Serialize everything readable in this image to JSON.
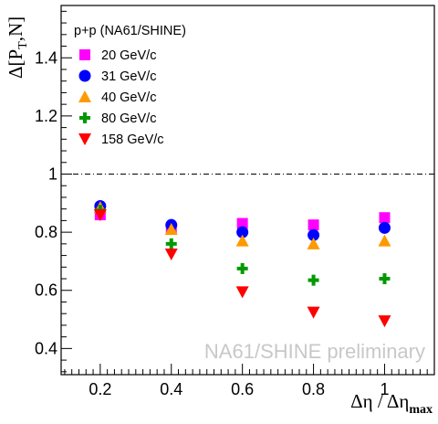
{
  "chart_data": {
    "type": "scatter",
    "xlabel": "Δη / Δη",
    "xlabel_sub": "max",
    "ylabel": "Δ[P",
    "ylabel_sub": "T",
    "ylabel_tail": ",N]",
    "xlim": [
      0.09,
      1.14
    ],
    "ylim": [
      0.31,
      1.58
    ],
    "x_ticks": [
      0.2,
      0.4,
      0.6,
      0.8,
      1.0
    ],
    "x_tick_labels": [
      "0.2",
      "0.4",
      "0.6",
      "0.8",
      "1"
    ],
    "y_ticks": [
      0.4,
      0.6,
      0.8,
      1.0,
      1.2,
      1.4
    ],
    "y_tick_labels": [
      "0.4",
      "0.6",
      "0.8",
      "1",
      "1.2",
      "1.4"
    ],
    "reference_line": 1.0,
    "legend_title": "p+p (NA61/SHINE)",
    "legend_position": "top-left",
    "grid": false,
    "watermark": "NA61/SHINE preliminary",
    "x": [
      0.2,
      0.4,
      0.6,
      0.8,
      1.0
    ],
    "series": [
      {
        "name": "20 GeV/c",
        "marker": "square",
        "color": "#ff00ff",
        "values": [
          0.86,
          0.81,
          0.83,
          0.825,
          0.85
        ]
      },
      {
        "name": "31 GeV/c",
        "marker": "circle",
        "color": "#0000ff",
        "values": [
          0.89,
          0.825,
          0.8,
          0.79,
          0.815
        ]
      },
      {
        "name": "40 GeV/c",
        "marker": "triangle-up",
        "color": "#ff9900",
        "values": [
          0.885,
          0.81,
          0.77,
          0.76,
          0.77
        ]
      },
      {
        "name": "80 GeV/c",
        "marker": "plus",
        "color": "#009900",
        "values": [
          0.875,
          0.76,
          0.675,
          0.635,
          0.64
        ]
      },
      {
        "name": "158 GeV/c",
        "marker": "triangle-down",
        "color": "#ff0000",
        "values": [
          0.86,
          0.725,
          0.595,
          0.525,
          0.495
        ]
      }
    ]
  }
}
